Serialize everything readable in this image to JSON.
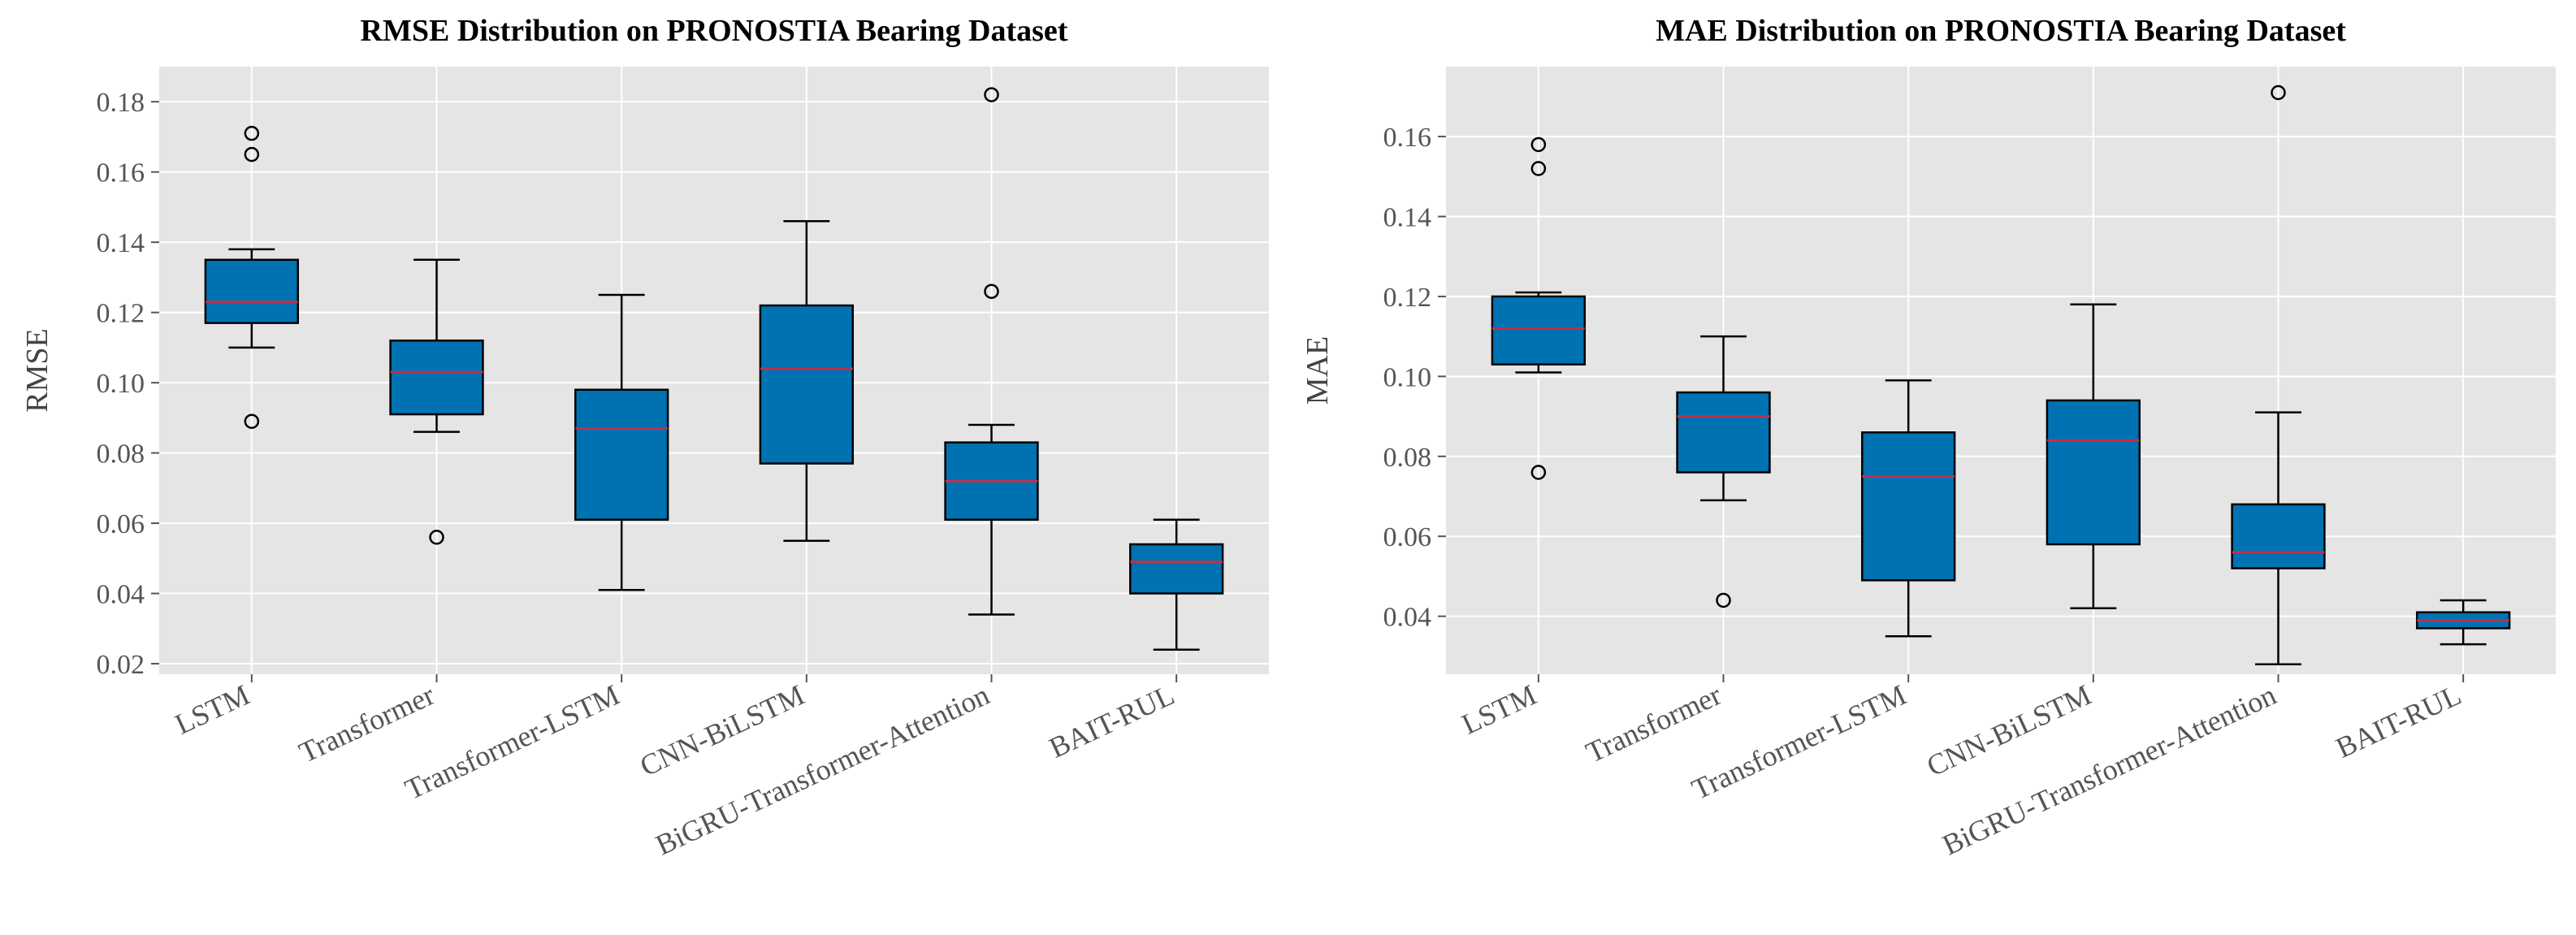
{
  "colors": {
    "plot_background": "#e5e5e5",
    "grid": "#ffffff",
    "box_fill": "#0072b2",
    "median": "#c0304a",
    "edge": "#000000"
  },
  "chart_data": [
    {
      "type": "boxplot",
      "title": "RMSE Distribution on PRONOSTIA Bearing Dataset",
      "xlabel": "",
      "ylabel": "RMSE",
      "ylim": [
        0.017,
        0.19
      ],
      "yticks": [
        0.02,
        0.04,
        0.06,
        0.08,
        0.1,
        0.12,
        0.14,
        0.16,
        0.18
      ],
      "ytick_labels": [
        "0.02",
        "0.04",
        "0.06",
        "0.08",
        "0.10",
        "0.12",
        "0.14",
        "0.16",
        "0.18"
      ],
      "grid": true,
      "categories": [
        "LSTM",
        "Transformer",
        "Transformer-LSTM",
        "CNN-BiLSTM",
        "BiGRU-Transformer-Attention",
        "BAIT-RUL"
      ],
      "boxes": [
        {
          "whisker_low": 0.11,
          "q1": 0.117,
          "median": 0.123,
          "q3": 0.135,
          "whisker_high": 0.138,
          "outliers": [
            0.089,
            0.165,
            0.171
          ]
        },
        {
          "whisker_low": 0.086,
          "q1": 0.091,
          "median": 0.103,
          "q3": 0.112,
          "whisker_high": 0.135,
          "outliers": [
            0.056
          ]
        },
        {
          "whisker_low": 0.041,
          "q1": 0.061,
          "median": 0.087,
          "q3": 0.098,
          "whisker_high": 0.125,
          "outliers": []
        },
        {
          "whisker_low": 0.055,
          "q1": 0.077,
          "median": 0.104,
          "q3": 0.122,
          "whisker_high": 0.146,
          "outliers": []
        },
        {
          "whisker_low": 0.034,
          "q1": 0.061,
          "median": 0.072,
          "q3": 0.083,
          "whisker_high": 0.088,
          "outliers": [
            0.126,
            0.182
          ]
        },
        {
          "whisker_low": 0.024,
          "q1": 0.04,
          "median": 0.049,
          "q3": 0.054,
          "whisker_high": 0.061,
          "outliers": []
        }
      ]
    },
    {
      "type": "boxplot",
      "title": "MAE Distribution on PRONOSTIA Bearing Dataset",
      "xlabel": "",
      "ylabel": "MAE",
      "ylim": [
        0.0255,
        0.1775
      ],
      "yticks": [
        0.04,
        0.06,
        0.08,
        0.1,
        0.12,
        0.14,
        0.16
      ],
      "ytick_labels": [
        "0.04",
        "0.06",
        "0.08",
        "0.10",
        "0.12",
        "0.14",
        "0.16"
      ],
      "grid": true,
      "categories": [
        "LSTM",
        "Transformer",
        "Transformer-LSTM",
        "CNN-BiLSTM",
        "BiGRU-Transformer-Attention",
        "BAIT-RUL"
      ],
      "boxes": [
        {
          "whisker_low": 0.101,
          "q1": 0.103,
          "median": 0.112,
          "q3": 0.12,
          "whisker_high": 0.121,
          "outliers": [
            0.076,
            0.152,
            0.158
          ]
        },
        {
          "whisker_low": 0.069,
          "q1": 0.076,
          "median": 0.09,
          "q3": 0.096,
          "whisker_high": 0.11,
          "outliers": [
            0.044
          ]
        },
        {
          "whisker_low": 0.035,
          "q1": 0.049,
          "median": 0.075,
          "q3": 0.086,
          "whisker_high": 0.099,
          "outliers": []
        },
        {
          "whisker_low": 0.042,
          "q1": 0.058,
          "median": 0.084,
          "q3": 0.094,
          "whisker_high": 0.118,
          "outliers": []
        },
        {
          "whisker_low": 0.028,
          "q1": 0.052,
          "median": 0.056,
          "q3": 0.068,
          "whisker_high": 0.091,
          "outliers": [
            0.171
          ]
        },
        {
          "whisker_low": 0.033,
          "q1": 0.037,
          "median": 0.039,
          "q3": 0.041,
          "whisker_high": 0.044,
          "outliers": []
        }
      ]
    }
  ]
}
